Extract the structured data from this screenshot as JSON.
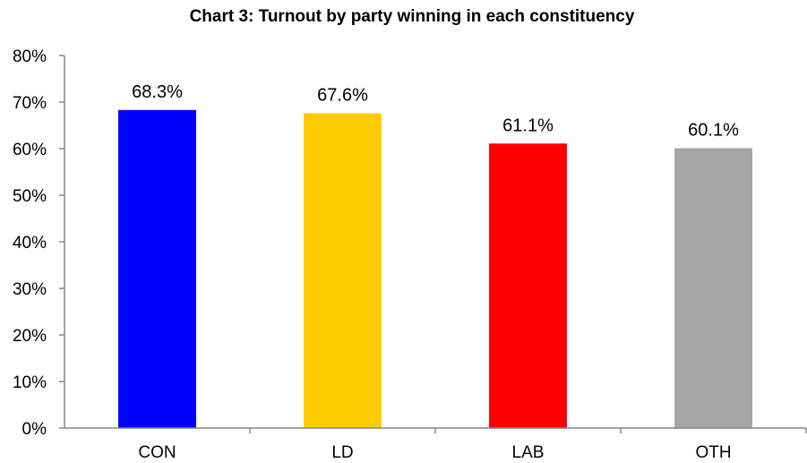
{
  "chart_data": {
    "type": "bar",
    "title": "Chart 3: Turnout by party winning in each constituency",
    "xlabel": "",
    "ylabel": "",
    "categories": [
      "CON",
      "LD",
      "LAB",
      "OTH"
    ],
    "values": [
      68.3,
      67.6,
      61.1,
      60.1
    ],
    "data_labels": [
      "68.3%",
      "67.6%",
      "61.1%",
      "60.1%"
    ],
    "colors": [
      "#0000FF",
      "#FFCC00",
      "#FF0000",
      "#A6A6A6"
    ],
    "ylim": [
      0,
      80
    ],
    "yticks": [
      0,
      10,
      20,
      30,
      40,
      50,
      60,
      70,
      80
    ],
    "ytick_labels": [
      "0%",
      "10%",
      "20%",
      "30%",
      "40%",
      "50%",
      "60%",
      "70%",
      "80%"
    ],
    "grid": false,
    "legend": "none"
  }
}
